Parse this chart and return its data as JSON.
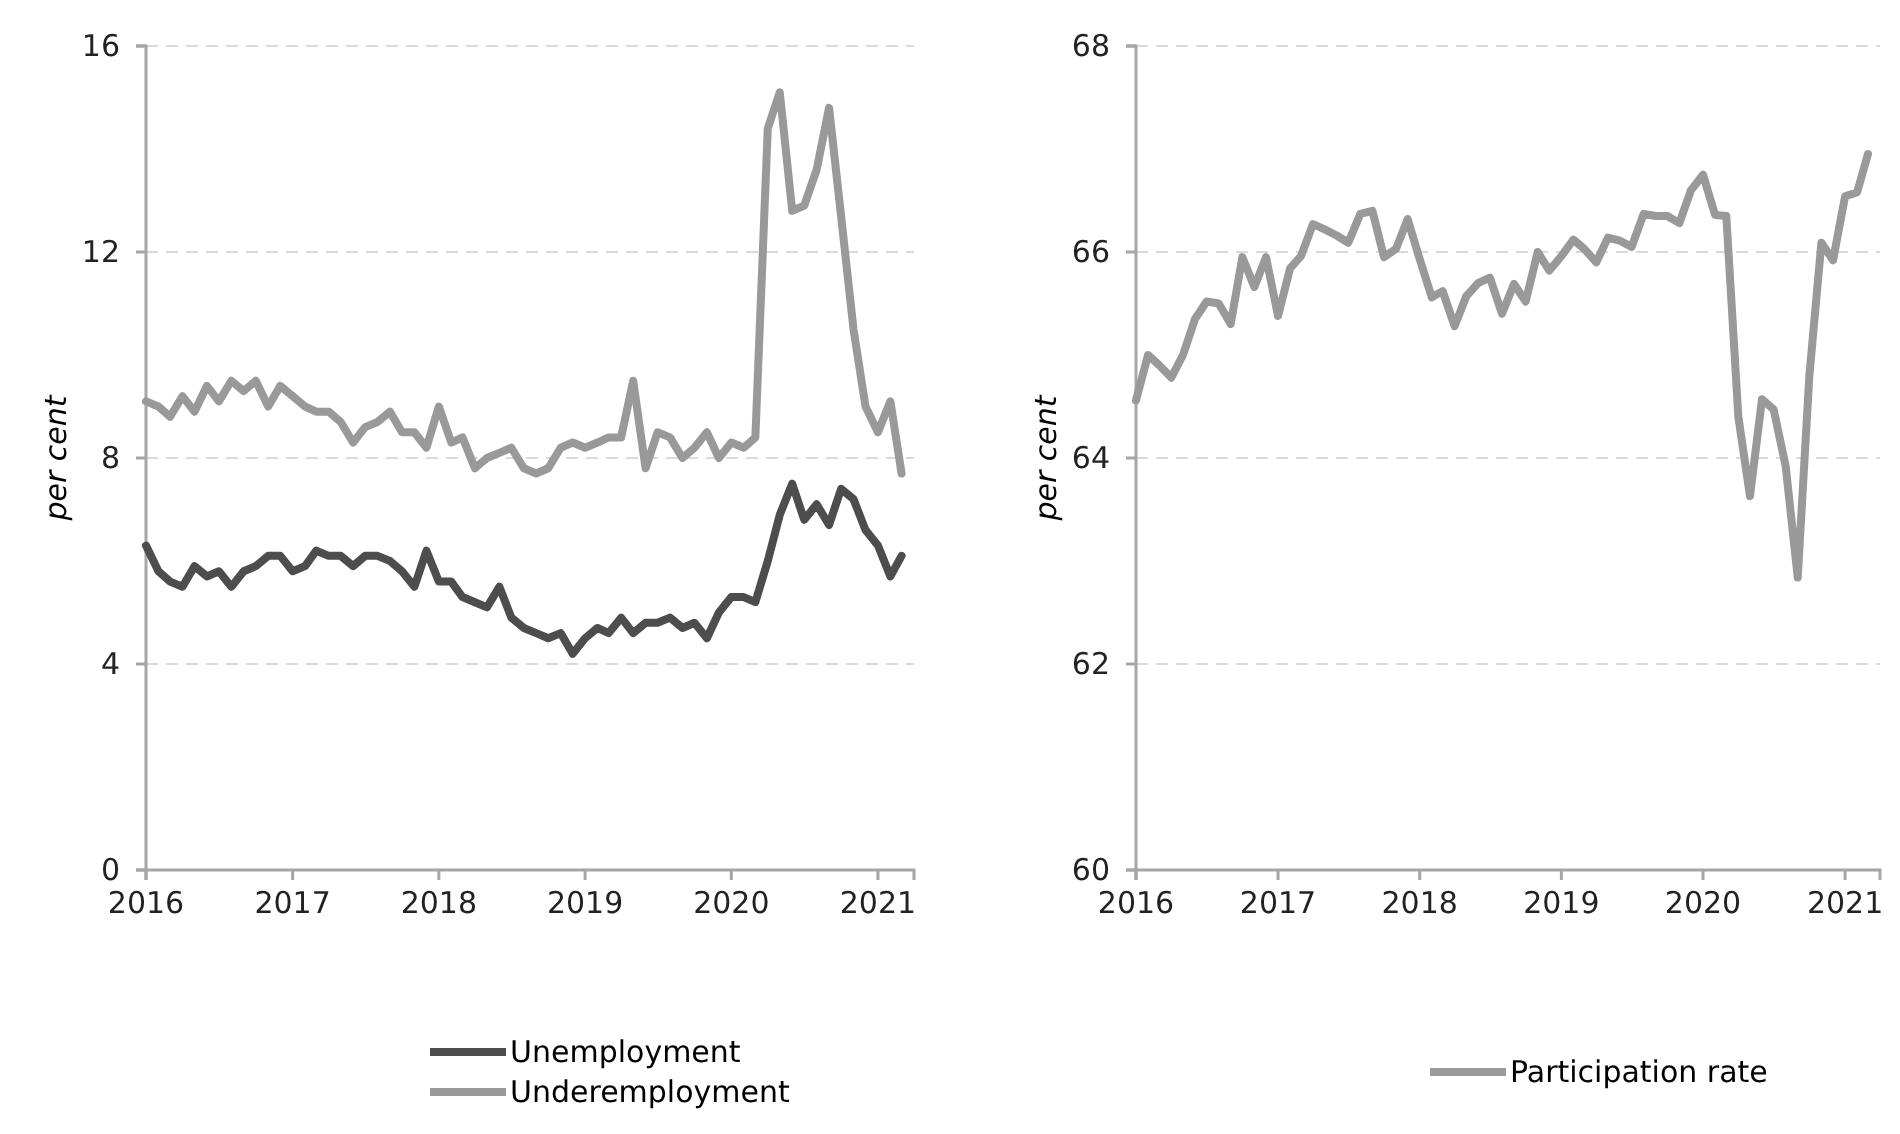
{
  "chart_data": [
    {
      "type": "line",
      "ylabel": "per cent",
      "x": [
        "2016-01",
        "2016-02",
        "2016-03",
        "2016-04",
        "2016-05",
        "2016-06",
        "2016-07",
        "2016-08",
        "2016-09",
        "2016-10",
        "2016-11",
        "2016-12",
        "2017-01",
        "2017-02",
        "2017-03",
        "2017-04",
        "2017-05",
        "2017-06",
        "2017-07",
        "2017-08",
        "2017-09",
        "2017-10",
        "2017-11",
        "2017-12",
        "2018-01",
        "2018-02",
        "2018-03",
        "2018-04",
        "2018-05",
        "2018-06",
        "2018-07",
        "2018-08",
        "2018-09",
        "2018-10",
        "2018-11",
        "2018-12",
        "2019-01",
        "2019-02",
        "2019-03",
        "2019-04",
        "2019-05",
        "2019-06",
        "2019-07",
        "2019-08",
        "2019-09",
        "2019-10",
        "2019-11",
        "2019-12",
        "2020-01",
        "2020-02",
        "2020-03",
        "2020-04",
        "2020-05",
        "2020-06",
        "2020-07",
        "2020-08",
        "2020-09",
        "2020-10",
        "2020-11",
        "2020-12",
        "2021-01",
        "2021-02",
        "2021-03"
      ],
      "series": [
        {
          "name": "Unemployment",
          "color": "#4d4d4d",
          "values": [
            6.3,
            5.8,
            5.6,
            5.5,
            5.9,
            5.7,
            5.8,
            5.5,
            5.8,
            5.9,
            6.1,
            6.1,
            5.8,
            5.9,
            6.2,
            6.1,
            6.1,
            5.9,
            6.1,
            6.1,
            6.0,
            5.8,
            5.5,
            6.2,
            5.6,
            5.6,
            5.3,
            5.2,
            5.1,
            5.5,
            4.9,
            4.7,
            4.6,
            4.5,
            4.6,
            4.2,
            4.5,
            4.7,
            4.6,
            4.9,
            4.6,
            4.8,
            4.8,
            4.9,
            4.7,
            4.8,
            4.5,
            5.0,
            5.3,
            5.3,
            5.2,
            6.0,
            6.9,
            7.5,
            6.8,
            7.1,
            6.7,
            7.4,
            7.2,
            6.6,
            6.3,
            5.7,
            6.1
          ]
        },
        {
          "name": "Underemployment",
          "color": "#999999",
          "values": [
            9.1,
            9.0,
            8.8,
            9.2,
            8.9,
            9.4,
            9.1,
            9.5,
            9.3,
            9.5,
            9.0,
            9.4,
            9.2,
            9.0,
            8.9,
            8.9,
            8.7,
            8.3,
            8.6,
            8.7,
            8.9,
            8.5,
            8.5,
            8.2,
            9.0,
            8.3,
            8.4,
            7.8,
            8.0,
            8.1,
            8.2,
            7.8,
            7.7,
            7.8,
            8.2,
            8.3,
            8.2,
            8.3,
            8.4,
            8.4,
            9.5,
            7.8,
            8.5,
            8.4,
            8.0,
            8.2,
            8.5,
            8.0,
            8.3,
            8.2,
            8.4,
            14.4,
            15.1,
            12.8,
            12.9,
            13.6,
            14.8,
            12.7,
            10.5,
            9.0,
            8.5,
            9.1,
            7.7
          ]
        }
      ],
      "xlim": [
        "2016-01",
        "2021-04"
      ],
      "xticks": [
        "2016",
        "2017",
        "2018",
        "2019",
        "2020",
        "2021"
      ],
      "ylim": [
        0,
        16
      ],
      "yticks": [
        0,
        4,
        8,
        12,
        16
      ],
      "grid": "y",
      "legend": "bottom",
      "line_style": "solid"
    },
    {
      "type": "line",
      "ylabel": "per cent",
      "x": [
        "2016-01",
        "2016-02",
        "2016-03",
        "2016-04",
        "2016-05",
        "2016-06",
        "2016-07",
        "2016-08",
        "2016-09",
        "2016-10",
        "2016-11",
        "2016-12",
        "2017-01",
        "2017-02",
        "2017-03",
        "2017-04",
        "2017-05",
        "2017-06",
        "2017-07",
        "2017-08",
        "2017-09",
        "2017-10",
        "2017-11",
        "2017-12",
        "2018-01",
        "2018-02",
        "2018-03",
        "2018-04",
        "2018-05",
        "2018-06",
        "2018-07",
        "2018-08",
        "2018-09",
        "2018-10",
        "2018-11",
        "2018-12",
        "2019-01",
        "2019-02",
        "2019-03",
        "2019-04",
        "2019-05",
        "2019-06",
        "2019-07",
        "2019-08",
        "2019-09",
        "2019-10",
        "2019-11",
        "2019-12",
        "2020-01",
        "2020-02",
        "2020-03",
        "2020-04",
        "2020-05",
        "2020-06",
        "2020-07",
        "2020-08",
        "2020-09",
        "2020-10",
        "2020-11",
        "2020-12",
        "2021-01",
        "2021-02",
        "2021-03"
      ],
      "series": [
        {
          "name": "Participation rate",
          "color": "#999999",
          "values": [
            64.56,
            65.0,
            64.9,
            64.78,
            65.0,
            65.35,
            65.52,
            65.5,
            65.3,
            65.95,
            65.66,
            65.95,
            65.38,
            65.84,
            65.96,
            66.27,
            66.22,
            66.16,
            66.09,
            66.37,
            66.4,
            65.95,
            66.03,
            66.32,
            65.93,
            65.56,
            65.62,
            65.28,
            65.57,
            65.7,
            65.75,
            65.4,
            65.69,
            65.52,
            66.0,
            65.82,
            65.96,
            66.12,
            66.03,
            65.9,
            66.14,
            66.11,
            66.05,
            66.37,
            66.35,
            66.35,
            66.28,
            66.6,
            66.75,
            66.36,
            66.35,
            64.4,
            63.63,
            64.57,
            64.47,
            63.92,
            62.84,
            64.8,
            66.09,
            65.92,
            66.54,
            66.58,
            66.95
          ]
        }
      ],
      "xlim": [
        "2016-01",
        "2021-04"
      ],
      "xticks": [
        "2016",
        "2017",
        "2018",
        "2019",
        "2020",
        "2021"
      ],
      "ylim": [
        60,
        68
      ],
      "yticks": [
        60,
        62,
        64,
        66,
        68
      ],
      "grid": "y",
      "legend": "bottom",
      "line_style": "solid"
    }
  ]
}
